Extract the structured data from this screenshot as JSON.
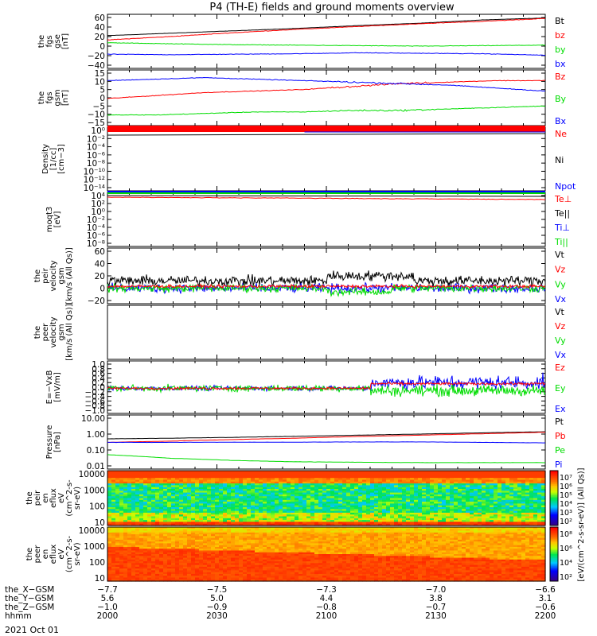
{
  "title": "P4 (TH-E) fields and ground moments overview",
  "date": "2021 Oct 01",
  "colors": {
    "black": "#000000",
    "red": "#ff0000",
    "green": "#00dd00",
    "blue": "#0000ff"
  },
  "chart_data": [
    {
      "id": "fgs-gse",
      "type": "line",
      "ylabel_lines": [
        "the",
        "fgs",
        "gse",
        "[nT]"
      ],
      "ylim": [
        -40,
        60
      ],
      "yticks": [
        "60",
        "40",
        "20",
        "0",
        "−20",
        "−40"
      ],
      "series": [
        {
          "name": "Bt",
          "color": "black",
          "values": [
            22,
            27,
            32,
            37,
            43,
            48,
            55,
            59
          ]
        },
        {
          "name": "bz",
          "color": "red",
          "values": [
            13,
            20,
            28,
            35,
            41,
            47,
            52,
            58
          ]
        },
        {
          "name": "by",
          "color": "green",
          "values": [
            7,
            5,
            3,
            2,
            1,
            0,
            1,
            2
          ]
        },
        {
          "name": "bx",
          "color": "blue",
          "values": [
            -17,
            -18,
            -17,
            -16,
            -14,
            -15,
            -16,
            -19
          ]
        }
      ]
    },
    {
      "id": "fgs-gsm",
      "type": "line",
      "ylabel_lines": [
        "the",
        "fgs",
        "gsm",
        "[nT]"
      ],
      "ylim": [
        -18,
        15
      ],
      "yticks": [
        "15",
        "10",
        "5",
        "0",
        "−5",
        "−10",
        "−15"
      ],
      "series": [
        {
          "name": "Bz",
          "color": "red",
          "values": [
            -2,
            0,
            2,
            3,
            4,
            6,
            8,
            9,
            10,
            10
          ]
        },
        {
          "name": "By",
          "color": "green",
          "values": [
            -13,
            -13,
            -12,
            -11,
            -11,
            -10,
            -10,
            -9,
            -8,
            -7
          ]
        },
        {
          "name": "Bx",
          "color": "blue",
          "values": [
            10,
            11,
            12,
            11,
            10,
            9,
            8,
            7,
            5,
            3
          ]
        }
      ]
    },
    {
      "id": "density",
      "type": "line",
      "ylabel_lines": [
        "Density",
        "[1/cc]",
        "[cm−3]"
      ],
      "ylog": true,
      "yticks": [
        "10⁰",
        "10⁻²",
        "10⁻⁴",
        "10⁻⁶",
        "10⁻⁸",
        "10⁻¹⁰",
        "10⁻¹²",
        "10⁻¹⁴"
      ],
      "series": [
        {
          "name": "Ne",
          "color": "red"
        },
        {
          "name": "Ni",
          "color": "black"
        },
        {
          "name": "Npot",
          "color": "blue"
        }
      ]
    },
    {
      "id": "temperature",
      "type": "line",
      "ylabel_lines": [
        "moqt3",
        "[eV]"
      ],
      "ylog": true,
      "yticks": [
        "10⁴",
        "10²",
        "10⁰",
        "10⁻²",
        "10⁻⁴",
        "10⁻⁶",
        "10⁻⁸"
      ],
      "series": [
        {
          "name": "Te⊥",
          "color": "red"
        },
        {
          "name": "Te||",
          "color": "black"
        },
        {
          "name": "Ti⊥",
          "color": "blue"
        },
        {
          "name": "Ti||",
          "color": "green"
        }
      ]
    },
    {
      "id": "peir-velocity",
      "type": "line",
      "ylabel_lines": [
        "the",
        "peir",
        "velocity",
        "gsm",
        "[km/s (All Qs)]"
      ],
      "ylim": [
        -20,
        60
      ],
      "yticks": [
        "60",
        "40",
        "20",
        "0",
        "−20"
      ],
      "series": [
        {
          "name": "Vt",
          "color": "black"
        },
        {
          "name": "Vz",
          "color": "red"
        },
        {
          "name": "Vy",
          "color": "green"
        },
        {
          "name": "Vx",
          "color": "blue"
        }
      ]
    },
    {
      "id": "peer-velocity",
      "type": "line",
      "ylabel_lines": [
        "the",
        "peer",
        "velocity",
        "gsm",
        "[km/s (All Qs)]"
      ],
      "yticks": [],
      "series": [
        {
          "name": "Vt",
          "color": "black"
        },
        {
          "name": "Vz",
          "color": "red"
        },
        {
          "name": "Vy",
          "color": "green"
        },
        {
          "name": "Vx",
          "color": "blue"
        }
      ]
    },
    {
      "id": "e-field",
      "type": "line",
      "ylabel_lines": [
        "E=−VxB",
        "[mV/m]"
      ],
      "ylim": [
        -1.0,
        1.0
      ],
      "yticks": [
        "1.0",
        "0.8",
        "0.6",
        "0.4",
        "0.2",
        "0.0",
        "−0.2",
        "−0.4",
        "−0.6",
        "−0.8",
        "−1.0"
      ],
      "series": [
        {
          "name": "Ez",
          "color": "red"
        },
        {
          "name": "Ey",
          "color": "green"
        },
        {
          "name": "Ex",
          "color": "blue"
        }
      ]
    },
    {
      "id": "pressure",
      "type": "line",
      "ylabel_lines": [
        "Pressure",
        "[nPa]"
      ],
      "ylog": true,
      "ylim": [
        0.01,
        10
      ],
      "yticks": [
        "10.00",
        "1.00",
        "0.10",
        "0.01"
      ],
      "series": [
        {
          "name": "Pt",
          "color": "black",
          "values": [
            0.5,
            0.55,
            0.62,
            0.72,
            0.85,
            1.0,
            1.2,
            1.4
          ]
        },
        {
          "name": "Pb",
          "color": "red",
          "values": [
            0.3,
            0.36,
            0.45,
            0.55,
            0.7,
            0.85,
            1.05,
            1.3
          ]
        },
        {
          "name": "Pe",
          "color": "green",
          "values": [
            0.05,
            0.03,
            0.022,
            0.018,
            0.017,
            0.016,
            0.016,
            0.016
          ]
        },
        {
          "name": "Pi",
          "color": "blue",
          "values": [
            0.3,
            0.3,
            0.31,
            0.31,
            0.32,
            0.32,
            0.3,
            0.28
          ]
        }
      ]
    },
    {
      "id": "peir-spectrogram",
      "type": "heatmap",
      "ylabel_lines": [
        "the",
        "peir",
        "en",
        "eflux",
        "eV",
        "(cm^2-s-",
        "sr-eV)"
      ],
      "ylog": true,
      "yticks": [
        "10000",
        "1000",
        "100",
        "10"
      ],
      "colorbar_ticks": [
        "10⁷",
        "10⁶",
        "10⁵",
        "10⁴",
        "10³",
        "10²"
      ]
    },
    {
      "id": "peer-spectrogram",
      "type": "heatmap",
      "ylabel_lines": [
        "the",
        "peer",
        "en",
        "eflux",
        "eV",
        "(cm^2-s-",
        "sr-eV)"
      ],
      "ylog": true,
      "yticks": [
        "10000",
        "1000",
        "100",
        "10"
      ],
      "colorbar_ticks": [
        "10⁸",
        "10⁶",
        "10⁴",
        "10²"
      ]
    }
  ],
  "colorbar_label": "[eV/(cm^2-s-sr-eV)] (All Qs)]",
  "xaxis": {
    "row_labels": [
      "the_X−GSM",
      "the_Y−GSM",
      "the_Z−GSM",
      "hhmm"
    ],
    "columns": [
      {
        "x": "−7.7",
        "y": "5.6",
        "z": "−1.0",
        "hhmm": "2000"
      },
      {
        "x": "−7.5",
        "y": "5.0",
        "z": "−0.9",
        "hhmm": "2030"
      },
      {
        "x": "−7.3",
        "y": "4.4",
        "z": "−0.8",
        "hhmm": "2100"
      },
      {
        "x": "−7.0",
        "y": "3.8",
        "z": "−0.7",
        "hhmm": "2130"
      },
      {
        "x": "−6.6",
        "y": "3.1",
        "z": "−0.6",
        "hhmm": "2200"
      }
    ]
  }
}
